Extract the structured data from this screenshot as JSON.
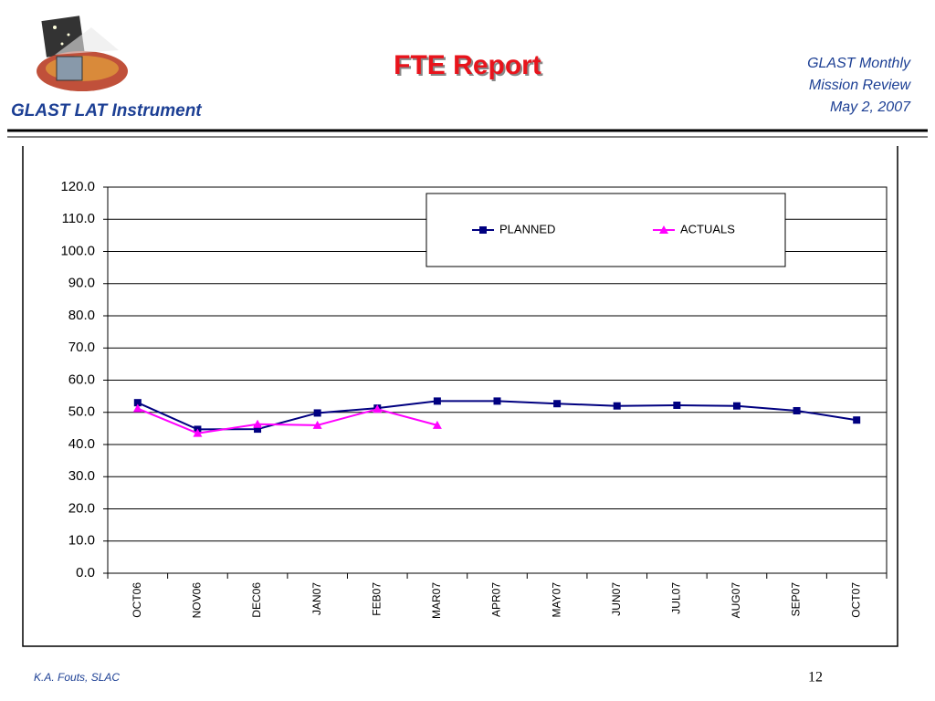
{
  "header": {
    "left": "GLAST LAT Instrument",
    "title": "FTE Report",
    "right": [
      "GLAST Monthly",
      "Mission Review",
      "May 2, 2007"
    ]
  },
  "footer": {
    "author": "K.A. Fouts, SLAC",
    "page": "12"
  },
  "chart_data": {
    "type": "line",
    "categories": [
      "OCT06",
      "NOV06",
      "DEC06",
      "JAN07",
      "FEB07",
      "MAR07",
      "APR07",
      "MAY07",
      "JUN07",
      "JUL07",
      "AUG07",
      "SEP07",
      "OCT07"
    ],
    "series": [
      {
        "name": "PLANNED",
        "color": "#000080",
        "marker": "square",
        "values": [
          53.0,
          44.7,
          44.8,
          49.8,
          51.3,
          53.5,
          53.5,
          52.7,
          52.0,
          52.2,
          52.0,
          50.5,
          47.6
        ]
      },
      {
        "name": "ACTUALS",
        "color": "#ff00ff",
        "marker": "triangle",
        "values": [
          51.2,
          43.5,
          46.3,
          46.0,
          51.0,
          46.0,
          null,
          null,
          null,
          null,
          null,
          null,
          null
        ]
      }
    ],
    "ylim": [
      0,
      120
    ],
    "yticks": [
      {
        "value": 0,
        "label": "0.0"
      },
      {
        "value": 10,
        "label": "10.0"
      },
      {
        "value": 20,
        "label": "20.0"
      },
      {
        "value": 30,
        "label": "30.0"
      },
      {
        "value": 40,
        "label": "40.0"
      },
      {
        "value": 50,
        "label": "50.0"
      },
      {
        "value": 60,
        "label": "60.0"
      },
      {
        "value": 70,
        "label": "70.0"
      },
      {
        "value": 80,
        "label": "80.0"
      },
      {
        "value": 90,
        "label": "90.0"
      },
      {
        "value": 100,
        "label": "100.0"
      },
      {
        "value": 110,
        "label": "110.0"
      },
      {
        "value": 120,
        "label": "120.0"
      }
    ],
    "grid": true,
    "legend": "top-right"
  }
}
